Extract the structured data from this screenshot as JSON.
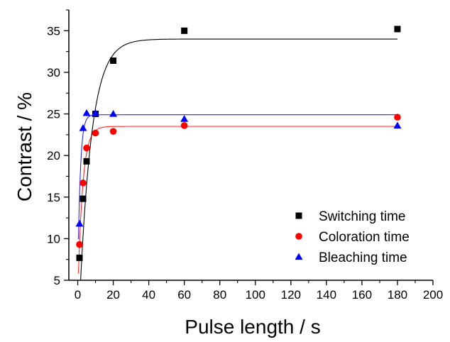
{
  "chart_data": {
    "type": "scatter",
    "title": "",
    "xlabel": "Pulse length / s",
    "ylabel": "Contrast / %",
    "xlim": [
      -5,
      200
    ],
    "ylim": [
      5,
      37.5
    ],
    "xticks": [
      0,
      20,
      40,
      60,
      80,
      100,
      120,
      140,
      160,
      180,
      200
    ],
    "yticks": [
      5,
      10,
      15,
      20,
      25,
      30,
      35
    ],
    "grid": false,
    "legend_position": "bottom-right",
    "series": [
      {
        "name": "Switching time",
        "color": "#000000",
        "marker": "square",
        "points": [
          {
            "x": 1,
            "y": 7.7
          },
          {
            "x": 3,
            "y": 14.8
          },
          {
            "x": 5,
            "y": 19.3
          },
          {
            "x": 10,
            "y": 25.0
          },
          {
            "x": 20,
            "y": 31.4
          },
          {
            "x": 60,
            "y": 35.0
          },
          {
            "x": 180,
            "y": 35.2
          }
        ],
        "fit": {
          "model": "exponential_saturation",
          "a": 34.0,
          "y0": -3.0,
          "tau": 6.7
        }
      },
      {
        "name": "Coloration time",
        "color": "#ff0000",
        "marker": "circle",
        "points": [
          {
            "x": 1,
            "y": 9.3
          },
          {
            "x": 3,
            "y": 16.7
          },
          {
            "x": 5,
            "y": 20.9
          },
          {
            "x": 10,
            "y": 22.7
          },
          {
            "x": 20,
            "y": 22.9
          },
          {
            "x": 60,
            "y": 23.6
          },
          {
            "x": 180,
            "y": 24.6
          }
        ],
        "fit": {
          "model": "exponential_saturation",
          "a": 23.5,
          "y0": 3.0,
          "tau": 2.7
        }
      },
      {
        "name": "Bleaching time",
        "color": "#0000ff",
        "marker": "triangle",
        "points": [
          {
            "x": 1,
            "y": 11.8
          },
          {
            "x": 3,
            "y": 23.3
          },
          {
            "x": 5,
            "y": 25.1
          },
          {
            "x": 10,
            "y": 25.1
          },
          {
            "x": 20,
            "y": 25.0
          },
          {
            "x": 60,
            "y": 24.4
          },
          {
            "x": 180,
            "y": 23.6
          }
        ],
        "fit": {
          "model": "exponential_saturation",
          "a": 24.9,
          "y0": 5.0,
          "tau": 1.4
        }
      }
    ]
  }
}
